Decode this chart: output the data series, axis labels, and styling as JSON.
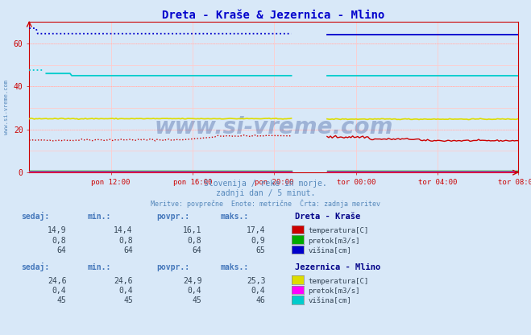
{
  "title": "Dreta - Kraše & Jezernica - Mlino",
  "title_color": "#0000cc",
  "fig_bg_color": "#d8e8f8",
  "xlabel_ticks": [
    "pon 12:00",
    "pon 16:00",
    "pon 20:00",
    "tor 00:00",
    "tor 04:00",
    "tor 08:00"
  ],
  "n_points": 288,
  "ylim": [
    0,
    70
  ],
  "yticks": [
    0,
    20,
    40,
    60
  ],
  "grid_color_h": "#ffaaaa",
  "grid_color_v": "#ffcccc",
  "watermark": "www.si-vreme.com",
  "subtitle1": "Slovenija / reke in morje.",
  "subtitle2": "zadnji dan / 5 minut.",
  "subtitle3": "Meritve: povprečne  Enote: metrične  Črta: zadnja meritev",
  "subtitle_color": "#5588bb",
  "axis_color": "#cc0000",
  "dreta_temp_color": "#cc0000",
  "dreta_pretok_color": "#00aa00",
  "dreta_visina_color": "#0000cc",
  "jez_temp_color": "#dddd00",
  "jez_pretok_color": "#ff00ff",
  "jez_visina_color": "#00cccc",
  "table_color": "#4477bb",
  "station1_name": "Dreta - Kraše",
  "station2_name": "Jezernica - Mlino",
  "station1_sedaj": [
    14.9,
    0.8,
    64
  ],
  "station1_min": [
    14.4,
    0.8,
    64
  ],
  "station1_povpr": [
    16.1,
    0.8,
    64
  ],
  "station1_maks": [
    17.4,
    0.9,
    65
  ],
  "station2_sedaj": [
    24.6,
    0.4,
    45
  ],
  "station2_min": [
    24.6,
    0.4,
    45
  ],
  "station2_povpr": [
    24.9,
    0.4,
    45
  ],
  "station2_maks": [
    25.3,
    0.4,
    46
  ],
  "side_watermark": "www.si-vreme.com"
}
